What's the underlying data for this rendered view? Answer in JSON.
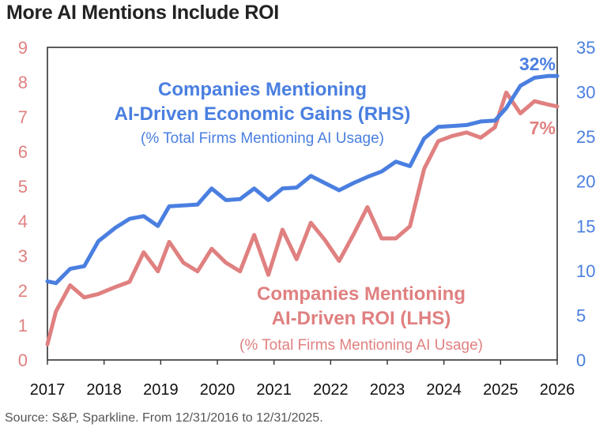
{
  "title": "More AI Mentions Include ROI",
  "source": "Source: S&P, Sparkline. From 12/31/2016 to 12/31/2025.",
  "chart_data": {
    "type": "line",
    "title": "More AI Mentions Include ROI",
    "x_range": [
      2017,
      2026
    ],
    "x_ticks": [
      "2017",
      "2018",
      "2019",
      "2020",
      "2021",
      "2022",
      "2023",
      "2024",
      "2025",
      "2026"
    ],
    "left_axis": {
      "range": [
        0,
        9
      ],
      "ticks": [
        "0",
        "1",
        "2",
        "3",
        "4",
        "5",
        "6",
        "7",
        "8",
        "9"
      ],
      "color": "#e08080"
    },
    "right_axis": {
      "range": [
        0,
        35
      ],
      "ticks": [
        "0",
        "5",
        "10",
        "15",
        "20",
        "25",
        "30",
        "35"
      ],
      "color": "#4a7fe0"
    },
    "series": [
      {
        "name": "Companies Mentioning AI-Driven Economic Gains (RHS)",
        "axis": "right",
        "color": "#4a7fe0",
        "label_lines": [
          "Companies Mentioning",
          "AI-Driven Economic Gains (RHS)"
        ],
        "sublabel": "(% Total Firms Mentioning AI Usage)",
        "end_label": "32%",
        "x": [
          2017.0,
          2017.15,
          2017.4,
          2017.65,
          2017.9,
          2018.2,
          2018.45,
          2018.7,
          2018.95,
          2019.15,
          2019.4,
          2019.65,
          2019.9,
          2020.15,
          2020.4,
          2020.65,
          2020.9,
          2021.15,
          2021.4,
          2021.65,
          2021.9,
          2022.15,
          2022.4,
          2022.65,
          2022.9,
          2023.15,
          2023.4,
          2023.65,
          2023.9,
          2024.15,
          2024.4,
          2024.65,
          2024.9,
          2025.1,
          2025.35,
          2025.6,
          2025.85,
          2026.0
        ],
        "values": [
          8.8,
          8.6,
          10.2,
          10.5,
          13.3,
          14.8,
          15.8,
          16.1,
          15.0,
          17.2,
          17.3,
          17.4,
          19.2,
          17.9,
          18.0,
          19.2,
          17.9,
          19.2,
          19.3,
          20.6,
          19.8,
          19.0,
          19.8,
          20.5,
          21.1,
          22.2,
          21.7,
          24.8,
          26.1,
          26.2,
          26.3,
          26.7,
          26.8,
          28.2,
          30.7,
          31.6,
          31.8,
          31.8
        ]
      },
      {
        "name": "Companies Mentioning AI-Driven ROI (LHS)",
        "axis": "left",
        "color": "#e08080",
        "label_lines": [
          "Companies Mentioning",
          "AI-Driven ROI (LHS)"
        ],
        "sublabel": "(% Total Firms Mentioning AI Usage)",
        "end_label": "7%",
        "x": [
          2017.0,
          2017.15,
          2017.4,
          2017.65,
          2017.9,
          2018.2,
          2018.45,
          2018.7,
          2018.95,
          2019.15,
          2019.4,
          2019.65,
          2019.9,
          2020.15,
          2020.4,
          2020.65,
          2020.9,
          2021.15,
          2021.4,
          2021.65,
          2021.9,
          2022.15,
          2022.4,
          2022.65,
          2022.9,
          2023.15,
          2023.4,
          2023.65,
          2023.9,
          2024.15,
          2024.4,
          2024.65,
          2024.9,
          2025.1,
          2025.35,
          2025.6,
          2025.85,
          2026.0
        ],
        "values": [
          0.45,
          1.4,
          2.15,
          1.8,
          1.9,
          2.1,
          2.25,
          3.1,
          2.55,
          3.4,
          2.8,
          2.55,
          3.2,
          2.8,
          2.55,
          3.6,
          2.45,
          3.75,
          2.9,
          3.95,
          3.45,
          2.85,
          3.6,
          4.4,
          3.5,
          3.5,
          3.85,
          5.5,
          6.3,
          6.45,
          6.55,
          6.4,
          6.7,
          7.7,
          7.1,
          7.45,
          7.35,
          7.3
        ]
      }
    ]
  }
}
